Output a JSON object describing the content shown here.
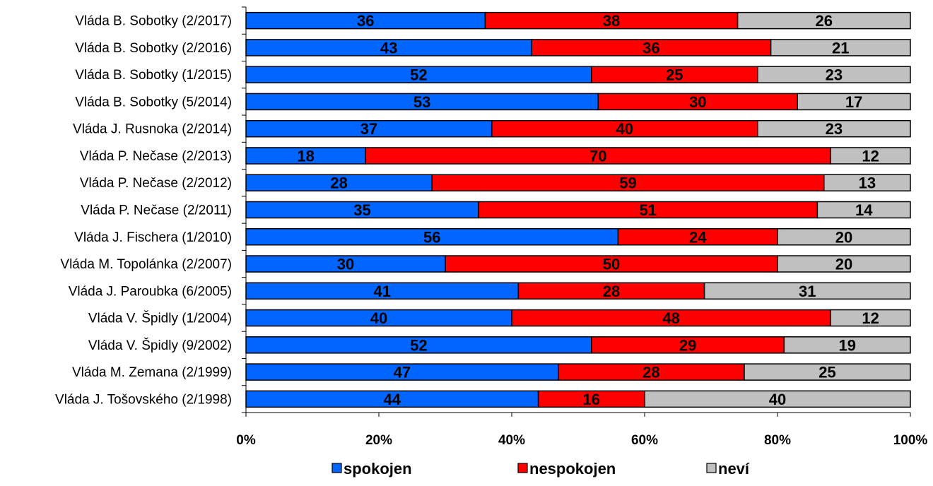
{
  "chart_data": {
    "type": "bar",
    "orientation": "horizontal",
    "stacked": "percent",
    "categories": [
      "Vláda B. Sobotky (2/2017)",
      "Vláda B. Sobotky (2/2016)",
      "Vláda B. Sobotky (1/2015)",
      "Vláda B. Sobotky (5/2014)",
      "Vláda J. Rusnoka (2/2014)",
      "Vláda P. Nečase (2/2013)",
      "Vláda P. Nečase (2/2012)",
      "Vláda P. Nečase (2/2011)",
      "Vláda J. Fischera (1/2010)",
      "Vláda M. Topolánka (2/2007)",
      "Vláda J. Paroubka (6/2005)",
      "Vláda V. Špidly (1/2004)",
      "Vláda V. Špidly (9/2002)",
      "Vláda M. Zemana (2/1999)",
      "Vláda J. Tošovského (2/1998)"
    ],
    "series": [
      {
        "name": "spokojen",
        "color": "#0066ff",
        "values": [
          36,
          43,
          52,
          53,
          37,
          18,
          28,
          35,
          56,
          30,
          41,
          40,
          52,
          47,
          44
        ]
      },
      {
        "name": "nespokojen",
        "color": "#ff0000",
        "values": [
          38,
          36,
          25,
          30,
          40,
          70,
          59,
          51,
          24,
          50,
          28,
          48,
          29,
          28,
          16
        ]
      },
      {
        "name": "neví",
        "color": "#c0c0c0",
        "values": [
          26,
          21,
          23,
          17,
          23,
          12,
          13,
          14,
          20,
          20,
          31,
          12,
          19,
          25,
          40
        ]
      }
    ],
    "xticks": [
      "0%",
      "20%",
      "40%",
      "60%",
      "80%",
      "100%"
    ],
    "xlim": [
      0,
      100
    ],
    "grid": false,
    "legend_position": "bottom",
    "title": "",
    "xlabel": "",
    "ylabel": ""
  }
}
